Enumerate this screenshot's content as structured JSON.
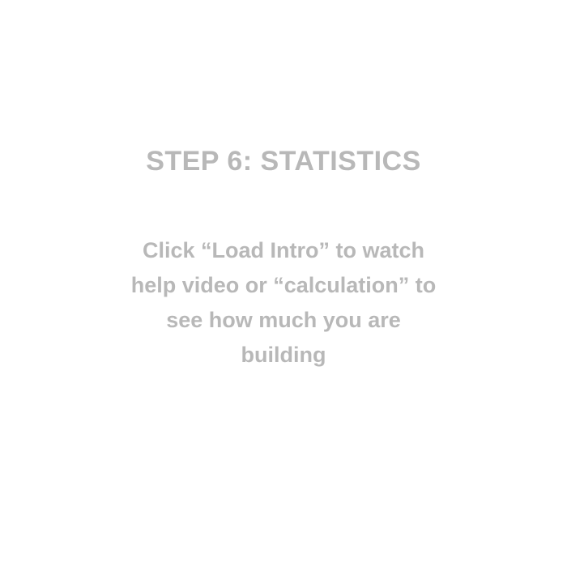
{
  "slide": {
    "title": "STEP 6: STATISTICS",
    "body": "Click “Load Intro” to watch\nhelp video or “calculation” to\nsee how much you are\nbuilding"
  },
  "colors": {
    "background": "#ffffff",
    "text": "#b8b8b8"
  }
}
